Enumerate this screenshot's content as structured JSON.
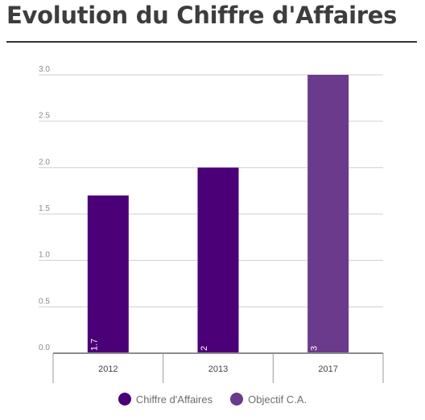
{
  "page": {
    "title": "Evolution du Chiffre d'Affaires"
  },
  "chart_data": {
    "type": "bar",
    "categories": [
      "2012",
      "2013",
      "2017"
    ],
    "series": [
      {
        "name": "Chiffre d'Affaires",
        "color": "#4b0078",
        "values": [
          1.7,
          2,
          null
        ],
        "labels": [
          "1.7",
          "2",
          ""
        ]
      },
      {
        "name": "Objectif C.A.",
        "color": "#6a3a8c",
        "values": [
          null,
          null,
          3
        ],
        "labels": [
          "",
          "",
          "3"
        ]
      }
    ],
    "ylim": [
      0,
      3
    ],
    "yticks": [
      "0.0",
      "0.5",
      "1.0",
      "1.5",
      "2.0",
      "2.5",
      "3.0"
    ],
    "ytick_values": [
      0,
      0.5,
      1,
      1.5,
      2,
      2.5,
      3
    ],
    "grid": true,
    "legend_position": "bottom",
    "title": "Evolution du Chiffre d'Affaires",
    "xlabel": "",
    "ylabel": ""
  }
}
